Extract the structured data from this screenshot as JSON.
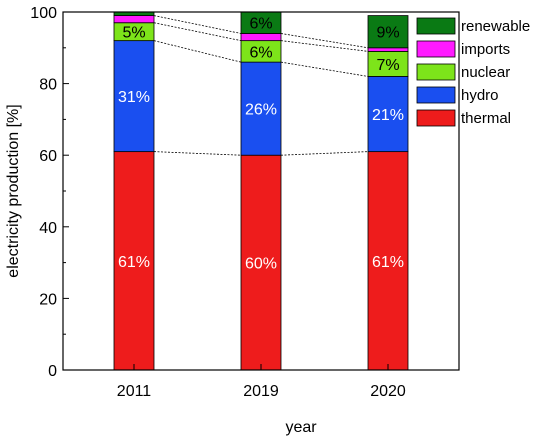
{
  "chart_data": {
    "type": "bar",
    "stacked": true,
    "categories": [
      "2011",
      "2019",
      "2020"
    ],
    "series": [
      {
        "name": "thermal",
        "color": "#ee1c1c",
        "values": [
          61,
          60,
          61
        ],
        "labels": [
          "61%",
          "60%",
          "61%"
        ],
        "label_color": "#ffffff"
      },
      {
        "name": "hydro",
        "color": "#1a4ff0",
        "values": [
          31,
          26,
          21
        ],
        "labels": [
          "31%",
          "26%",
          "21%"
        ],
        "label_color": "#ffffff"
      },
      {
        "name": "nuclear",
        "color": "#7de41a",
        "values": [
          5,
          6,
          7
        ],
        "labels": [
          "5%",
          "6%",
          "7%"
        ],
        "label_color": "#000000"
      },
      {
        "name": "imports",
        "color": "#ff1aff",
        "values": [
          2,
          2,
          1
        ],
        "labels": [
          "",
          "",
          ""
        ],
        "label_color": "#000000"
      },
      {
        "name": "renewable",
        "color": "#0a7a14",
        "values": [
          1,
          6,
          9
        ],
        "labels": [
          "",
          "6%",
          "9%"
        ],
        "label_color": "#000000"
      }
    ],
    "xlabel": "year",
    "ylabel": "electricity production [%]",
    "ylim": [
      0,
      100
    ],
    "yticks": [
      "0",
      "20",
      "40",
      "60",
      "80",
      "100"
    ],
    "legend": {
      "placement": "right",
      "order": [
        "renewable",
        "imports",
        "nuclear",
        "hydro",
        "thermal"
      ]
    },
    "connector_lines": true
  }
}
